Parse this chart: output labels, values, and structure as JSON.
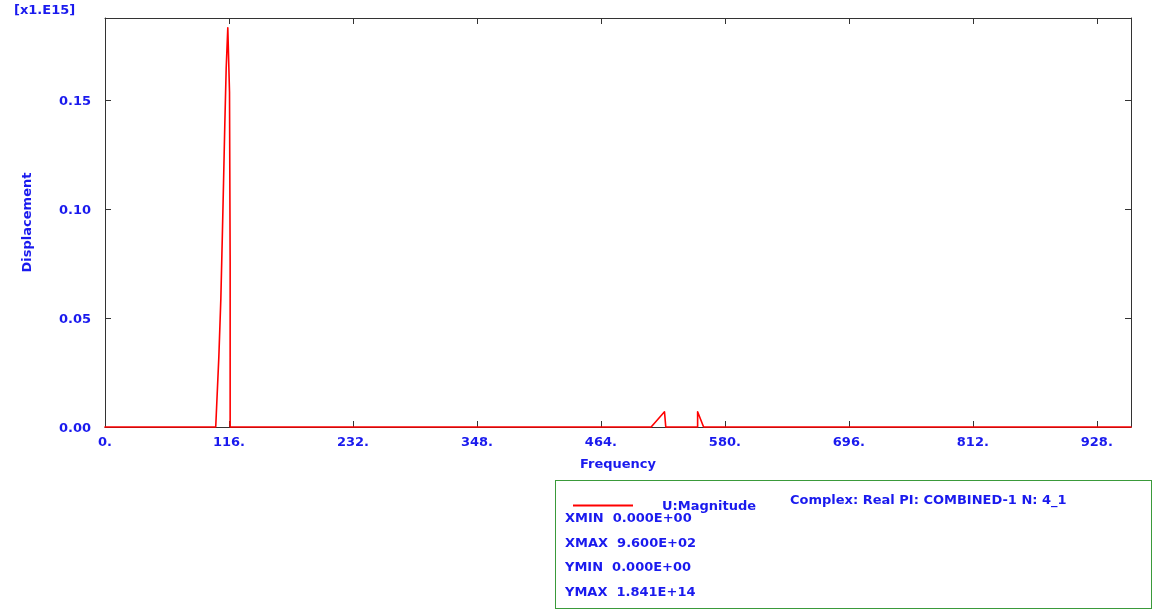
{
  "chart_data": {
    "type": "line",
    "xlabel": "Frequency",
    "ylabel": "Displacement",
    "annotations": [
      "[x1.E15]",
      "Complex: Real PI: COMBINED-1 N: 4_1",
      "XMIN  0.000E+00",
      "XMAX  9.600E+02",
      "YMIN  0.000E+00",
      "YMAX  1.841E+14"
    ],
    "series": [
      {
        "name": "U:Magnitude",
        "color": "#ff0000",
        "x": [
          0,
          103.6,
          104.1,
          106.5,
          108.4,
          109.7,
          110.9,
          112.1,
          113.4,
          114.9,
          116.5,
          117.1,
          117.1,
          511,
          523.5,
          524.7,
          554.5,
          554.5,
          560.1,
          960
        ],
        "values": [
          0,
          0,
          0.0055,
          0.032,
          0.059,
          0.086,
          0.112,
          0.139,
          0.165,
          0.1835,
          0.154,
          0.076,
          0,
          0,
          0.007,
          0,
          0,
          0.007,
          0,
          0
        ]
      }
    ],
    "xlim": [
      0,
      960
    ],
    "ylim": [
      0,
      0.188
    ],
    "xticks": [
      {
        "value": 0,
        "label": "0."
      },
      {
        "value": 116,
        "label": "116."
      },
      {
        "value": 232,
        "label": "232."
      },
      {
        "value": 348,
        "label": "348."
      },
      {
        "value": 464,
        "label": "464."
      },
      {
        "value": 580,
        "label": "580."
      },
      {
        "value": 696,
        "label": "696."
      },
      {
        "value": 812,
        "label": "812."
      },
      {
        "value": 928,
        "label": "928."
      }
    ],
    "yticks": [
      {
        "value": 0,
        "label": "0.00"
      },
      {
        "value": 0.05,
        "label": "0.05"
      },
      {
        "value": 0.1,
        "label": "0.10"
      },
      {
        "value": 0.15,
        "label": "0.15"
      }
    ],
    "grid": false,
    "legend": "bottom right",
    "marker": "none",
    "line_style": "solid"
  }
}
